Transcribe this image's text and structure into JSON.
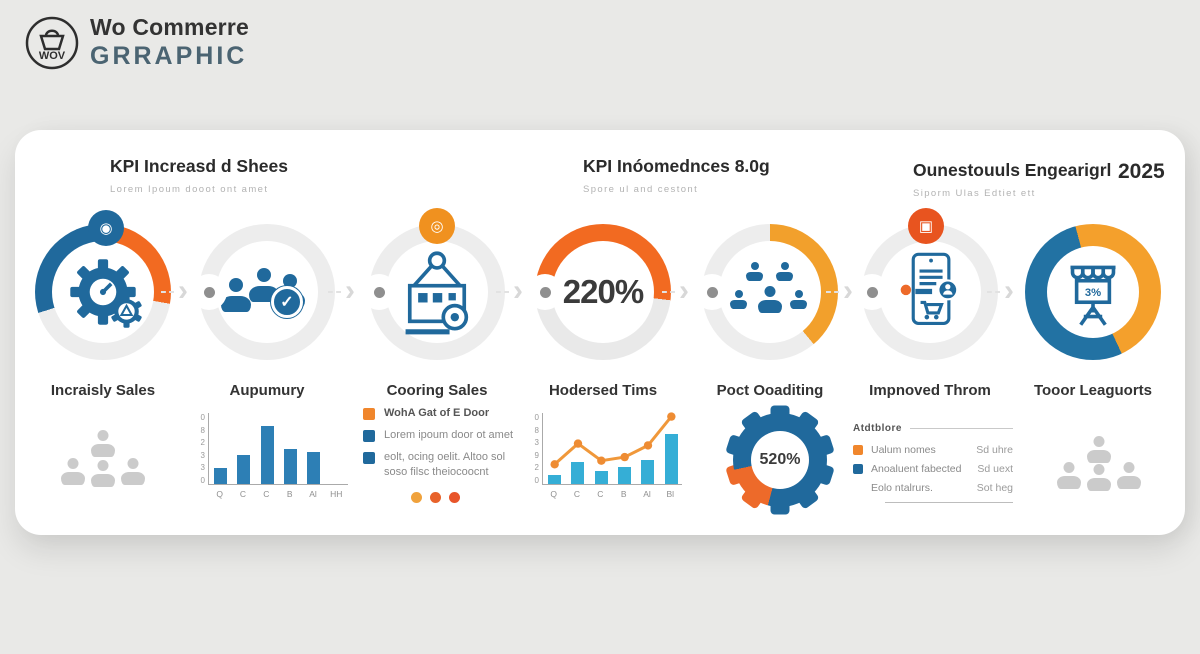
{
  "logo": {
    "title": "Wo Commerre",
    "subtitle": "GRRAPHIC",
    "mark": "WOV"
  },
  "headers": [
    {
      "title": "KPI Increasd d Shees",
      "subtitle": "Lorem Ipoum dooot ont amet"
    },
    {
      "title": "KPI Inóomednces 8.0g",
      "subtitle": "Spore ul and cestont"
    },
    {
      "title": "Ounestouuls Engearigrl",
      "subtitle": "Siporm Ulas Edtiet ett",
      "year": "2025"
    }
  ],
  "steps": [
    {
      "label": "Incraisly Sales",
      "icon": "gears-gauge-icon"
    },
    {
      "label": "Aupumury",
      "icon": "team-check-icon"
    },
    {
      "label": "Cooring Sales",
      "icon": "crate-hook-icon"
    },
    {
      "label": "Hodersed Tims",
      "value": "220%"
    },
    {
      "label": "Poct Ooaditing",
      "icon": "audience-icon"
    },
    {
      "label": "Impnoved Throm",
      "icon": "mobile-shop-icon"
    },
    {
      "label": "Tooor Leaguorts",
      "value": "3%",
      "icon": "storefront-icon"
    }
  ],
  "icons": {
    "eye_glyph": "◉",
    "target_glyph": "◎",
    "lock_glyph": "▣",
    "check_glyph": "✓"
  },
  "legend1": {
    "items": [
      {
        "bullet": "orange",
        "text": "WohA Gat of E Door"
      },
      {
        "bullet": "blue",
        "text": "Lorem ipoum door ot amet"
      },
      {
        "bullet": "blue",
        "text": "eolt, ocing oelit. Altoo sol"
      },
      {
        "bullet": "none",
        "text": "soso filsc theiocoocnt"
      }
    ]
  },
  "gauge": {
    "value": "520%"
  },
  "legend2": {
    "title": "Atdtblore",
    "rows": [
      {
        "bullet": "orange",
        "label": "Ualum nomes",
        "value": "Sd uhre"
      },
      {
        "bullet": "blue",
        "label": "Anoaluent fabected",
        "value": "Sd uext"
      },
      {
        "bullet": "none",
        "label": "Eolo ntalrurs.",
        "value": "Sot heg"
      }
    ]
  },
  "colors": {
    "blue": "#20699c",
    "light_blue": "#35aed6",
    "orange": "#f26a21",
    "amber": "#f4a02c",
    "red_orange": "#e8541f",
    "ring_gray": "#ededed",
    "card_bg": "#ffffff",
    "page_bg": "#e9e9e7"
  },
  "chart_data": [
    {
      "type": "bar",
      "categories": [
        "Q",
        "C",
        "C",
        "B",
        "Al",
        "HH"
      ],
      "values": [
        1.8,
        3.2,
        6.4,
        3.9,
        3.6,
        0
      ],
      "ymax": 8,
      "ytick_labels": [
        "0",
        "8",
        "2",
        "3",
        "3",
        "0"
      ],
      "bar_color": "#2d7fb5",
      "title": "",
      "xlabel": "",
      "ylabel": ""
    },
    {
      "type": "bar+line",
      "categories": [
        "Q",
        "C",
        "C",
        "B",
        "Al",
        "Bl"
      ],
      "series": [
        {
          "name": "bars",
          "type": "bar",
          "values": [
            1.0,
            2.5,
            1.5,
            1.9,
            2.7,
            5.6
          ],
          "color": "#35aed6"
        },
        {
          "name": "line",
          "type": "line",
          "values": [
            2.3,
            4.6,
            2.7,
            3.1,
            4.4,
            7.6
          ],
          "color": "#f0983a"
        }
      ],
      "ymax": 8,
      "ytick_labels": [
        "0",
        "8",
        "3",
        "9",
        "2",
        "0"
      ],
      "title": "",
      "xlabel": "",
      "ylabel": ""
    }
  ]
}
